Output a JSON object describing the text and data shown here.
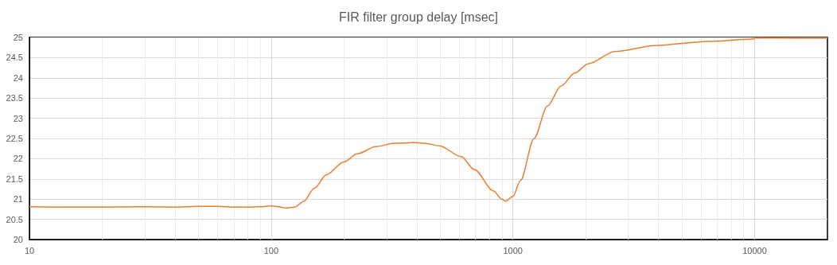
{
  "chart_data": {
    "type": "line",
    "title": "FIR filter group delay [msec]",
    "x": [
      10,
      15,
      20,
      30,
      40,
      50,
      60,
      70,
      80,
      90,
      100,
      110,
      115,
      125,
      136,
      151,
      169,
      200,
      227,
      271,
      324,
      369,
      385,
      430,
      497,
      611,
      692,
      832,
      898,
      933,
      1000,
      1075,
      1222,
      1389,
      1582,
      1803,
      2051,
      2640,
      3880,
      6500,
      9900,
      10000,
      15000,
      20000
    ],
    "series": [
      {
        "color": "#ed7d31",
        "values": [
          20.81,
          20.8,
          20.8,
          20.81,
          20.8,
          20.82,
          20.82,
          20.8,
          20.8,
          20.81,
          20.83,
          20.8,
          20.78,
          20.8,
          20.94,
          21.27,
          21.6,
          21.92,
          22.12,
          22.3,
          22.38,
          22.39,
          22.4,
          22.38,
          22.32,
          22.05,
          21.73,
          21.2,
          21.0,
          20.95,
          21.07,
          21.46,
          22.5,
          23.3,
          23.8,
          24.12,
          24.35,
          24.65,
          24.8,
          24.9,
          24.96,
          24.99,
          24.98,
          24.98
        ]
      }
    ],
    "log": "x",
    "xlim": [
      10,
      20000
    ],
    "xticks": [
      10,
      100,
      1000,
      10000
    ],
    "ylim": [
      20,
      25
    ],
    "yticks": [
      20,
      20.5,
      21,
      21.5,
      22,
      22.5,
      23,
      23.5,
      24,
      24.5,
      25
    ],
    "grid": true,
    "marker": "none",
    "line_style": "solid"
  }
}
